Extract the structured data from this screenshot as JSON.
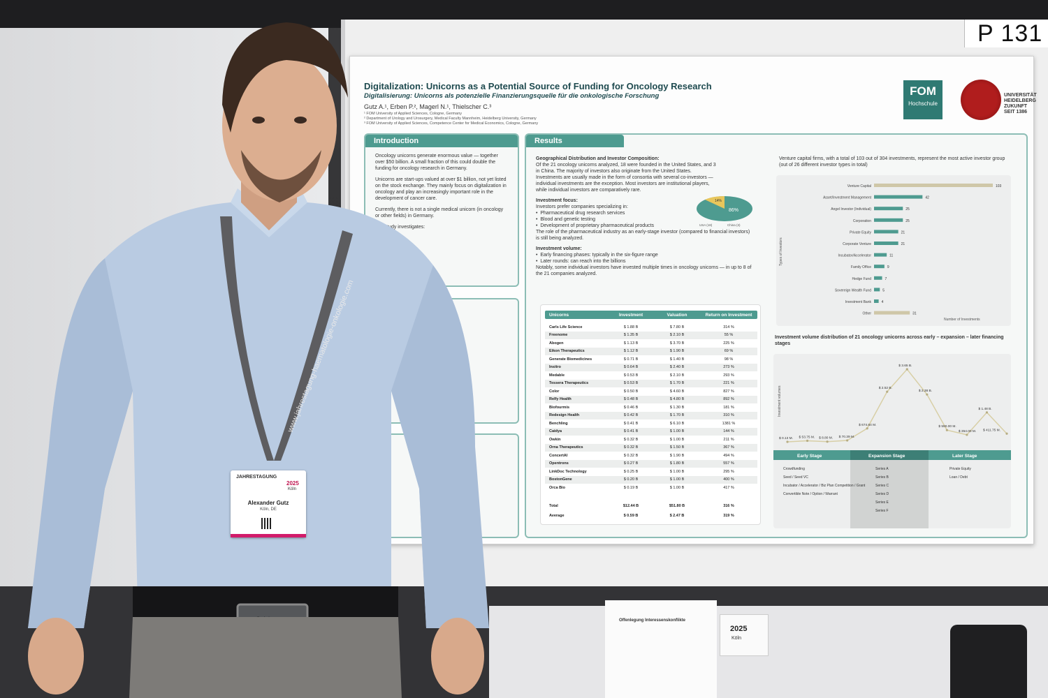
{
  "booth_number": "P 131",
  "poster": {
    "title": "Digitalization: Unicorns as a Potential Source of Funding for Oncology Research",
    "subtitle": "Digitalisierung: Unicorns als potenzielle Finanzierungsquelle für die onkologische Forschung",
    "authors": "Gutz A.¹, Erben P.², Magerl N.¹, Thielscher C.³",
    "affiliations": [
      "¹ FOM University of Applied Sciences, Cologne, Germany",
      "² Department of Urology and Urosurgery, Medical Faculty Mannheim, Heidelberg University, Germany",
      "³ FOM University of Applied Sciences, Competence Center for Medical Economics, Cologne, Germany"
    ],
    "logos": {
      "fom": "FOM",
      "fom_sub": "Hochschule",
      "university": "UNIVERSITÄT HEIDELBERG ZUKUNFT SEIT 1386"
    },
    "intro": {
      "heading": "Introduction",
      "paragraphs": [
        "Oncology unicorns generate enormous value — together over $50 billion. A small fraction of this could double the funding for oncology research in Germany.",
        "Unicorns are start-ups valued at over $1 billion, not yet listed on the stock exchange. They mainly focus on digitalization in oncology and play an increasingly important role in the development of cancer care.",
        "Currently, there is not a single medical unicorn (in oncology or other fields) in Germany.",
        "Our study investigates:"
      ]
    },
    "results": {
      "heading": "Results",
      "geo_heading": "Geographical Distribution and Investor Composition:",
      "geo_text": "Of the 21 oncology unicorns analyzed, 18 were founded in the United States, and 3 in China. The majority of investors also originate from the United States. Investments are usually made in the form of consortia with several co-investors — individual investments are the exception. Most investors are institutional players, while individual investors are comparatively rare.",
      "focus_heading": "Investment focus:",
      "focus_intro": "Investors prefer companies specializing in:",
      "focus_items": [
        "Pharmaceutical drug research services",
        "Blood and genetic testing",
        "Development of proprietary pharmaceutical products"
      ],
      "focus_outro": "The role of the pharmaceutical industry as an early-stage investor (compared to financial investors) is still being analyzed.",
      "volume_heading": "Investment volume:",
      "volume_items": [
        "Early financing phases: typically in the six-figure range",
        "Later rounds: can reach into the billions"
      ],
      "volume_outro": "Notably, some individual investors have invested multiple times in oncology unicorns — in up to 8 of the 21 companies analyzed.",
      "pie": {
        "usa_label": "86%",
        "china_label": "14%",
        "legend_usa": "USA (18)",
        "legend_china": "China (3)",
        "usa_color": "#4e9b90",
        "china_color": "#e8c65c",
        "usa_share": 0.86
      },
      "vc_text": "Venture capital firms, with a total of 103 out of 304 investments, represent the most active investor group (out of 26 different investor types in total)",
      "volume_chart_text": "Investment volume distribution of 21 oncology unicorns across early – expansion – later financing stages"
    },
    "table": {
      "headers": [
        "Unicorns",
        "Investment",
        "Valuation",
        "Return on Investment"
      ],
      "rows": [
        [
          "Carls Life Science",
          "$ 1.88 B",
          "$ 7.80 B",
          "314 %"
        ],
        [
          "Freenome",
          "$ 1.35 B",
          "$ 2.10 B",
          "55 %"
        ],
        [
          "Abogen",
          "$ 1.13 B",
          "$ 3.70 B",
          "225 %"
        ],
        [
          "Eikon Therapeutics",
          "$ 1.12 B",
          "$ 1.90 B",
          "69 %"
        ],
        [
          "Generate Biomedicines",
          "$ 0.71 B",
          "$ 1.40 B",
          "98 %"
        ],
        [
          "Insitro",
          "$ 0.64 B",
          "$ 2.40 B",
          "273 %"
        ],
        [
          "Medable",
          "$ 0.53 B",
          "$ 2.10 B",
          "293 %"
        ],
        [
          "Tessera Therapeutics",
          "$ 0.53 B",
          "$ 1.70 B",
          "221 %"
        ],
        [
          "Color",
          "$ 0.50 B",
          "$ 4.60 B",
          "827 %"
        ],
        [
          "Relfy Health",
          "$ 0.48 B",
          "$ 4.80 B",
          "892 %"
        ],
        [
          "Biofourmis",
          "$ 0.46 B",
          "$ 1.30 B",
          "181 %"
        ],
        [
          "Redesign Health",
          "$ 0.42 B",
          "$ 1.70 B",
          "310 %"
        ],
        [
          "Benchling",
          "$ 0.41 B",
          "$ 6.10 B",
          "1381 %"
        ],
        [
          "Caidya",
          "$ 0.41 B",
          "$ 1.00 B",
          "144 %"
        ],
        [
          "Owkin",
          "$ 0.32 B",
          "$ 1.00 B",
          "211 %"
        ],
        [
          "Orna Therapeutics",
          "$ 0.32 B",
          "$ 1.50 B",
          "367 %"
        ],
        [
          "ConcertAI",
          "$ 0.32 B",
          "$ 1.90 B",
          "494 %"
        ],
        [
          "Opentrons",
          "$ 0.27 B",
          "$ 1.80 B",
          "557 %"
        ],
        [
          "LinkDoc Technology",
          "$ 0.25 B",
          "$ 1.00 B",
          "295 %"
        ],
        [
          "BostonGene",
          "$ 0.20 B",
          "$ 1.00 B",
          "400 %"
        ],
        [
          "Orca Bio",
          "$ 0.19 B",
          "$ 1.00 B",
          "417 %"
        ]
      ],
      "total": [
        "Total",
        "$12.44 B",
        "$51.80 B",
        "316 %"
      ],
      "average": [
        "Average",
        "$ 0.59 B",
        "$ 2.47 B",
        "319 %"
      ]
    },
    "investor_chart": {
      "type": "bar",
      "categories": [
        "Venture Capital",
        "Asset/Investment Management",
        "Angel Investor (Individual)",
        "Corporation",
        "Private Equity",
        "Corporate Venture",
        "Incubator/Accelerator",
        "Family Office",
        "Hedge Fund",
        "Sovereign Wealth Fund",
        "Investment Bank",
        "Other"
      ],
      "values": [
        103,
        42,
        25,
        25,
        21,
        21,
        11,
        9,
        7,
        5,
        4,
        31
      ],
      "xlabel": "Number of Investments",
      "ylabel": "Types of Investors",
      "bar_color": "#4e9b90",
      "highlight_color": "#cfc7a8"
    },
    "stage_chart": {
      "type": "line",
      "ylabel": "Investment volumes",
      "point_labels": [
        "$ 0.13 M.",
        "$ 53.75 M.",
        "$ 8.80 M.",
        "$ 70.39 M.",
        "$ 674.64 M.",
        "$ 2.52 B.",
        "$ 3.65 B.",
        "$ 2.38 B.",
        "$ 590.00 M.",
        "$ 354.00 M.",
        "$ 1.48 B.",
        "$ 411.75 M."
      ],
      "values_musd": [
        0.13,
        53.75,
        8.8,
        70.39,
        674.64,
        2520,
        3650,
        2380,
        590,
        354,
        1480,
        411.75
      ],
      "stages": [
        "Early Stage",
        "Expansion Stage",
        "Later Stage"
      ],
      "early_items": [
        "Crowdfunding",
        "Seed / Seed VC",
        "Incubator / Accelerator / Biz Plan Competition / Grant",
        "Convertible Note / Option / Warrant"
      ],
      "expansion_items": [
        "Series A",
        "Series B",
        "Series C",
        "Series D",
        "Series E",
        "Series F"
      ],
      "later_items": [
        "Private Equity",
        "Loan / Debt"
      ]
    }
  },
  "badge": {
    "event": "JAHRESTAGUNG",
    "year": "2025",
    "city": "Köln",
    "name": "Alexander Gutz",
    "location": "Köln, DE"
  },
  "lanyard": "www.jahrestagung-haematologie-onkologie.com",
  "belt_buckle": "Calvin",
  "sheet": {
    "title": "Offenlegung Interessenskonflikte",
    "year": "2025",
    "city": "Köln"
  }
}
